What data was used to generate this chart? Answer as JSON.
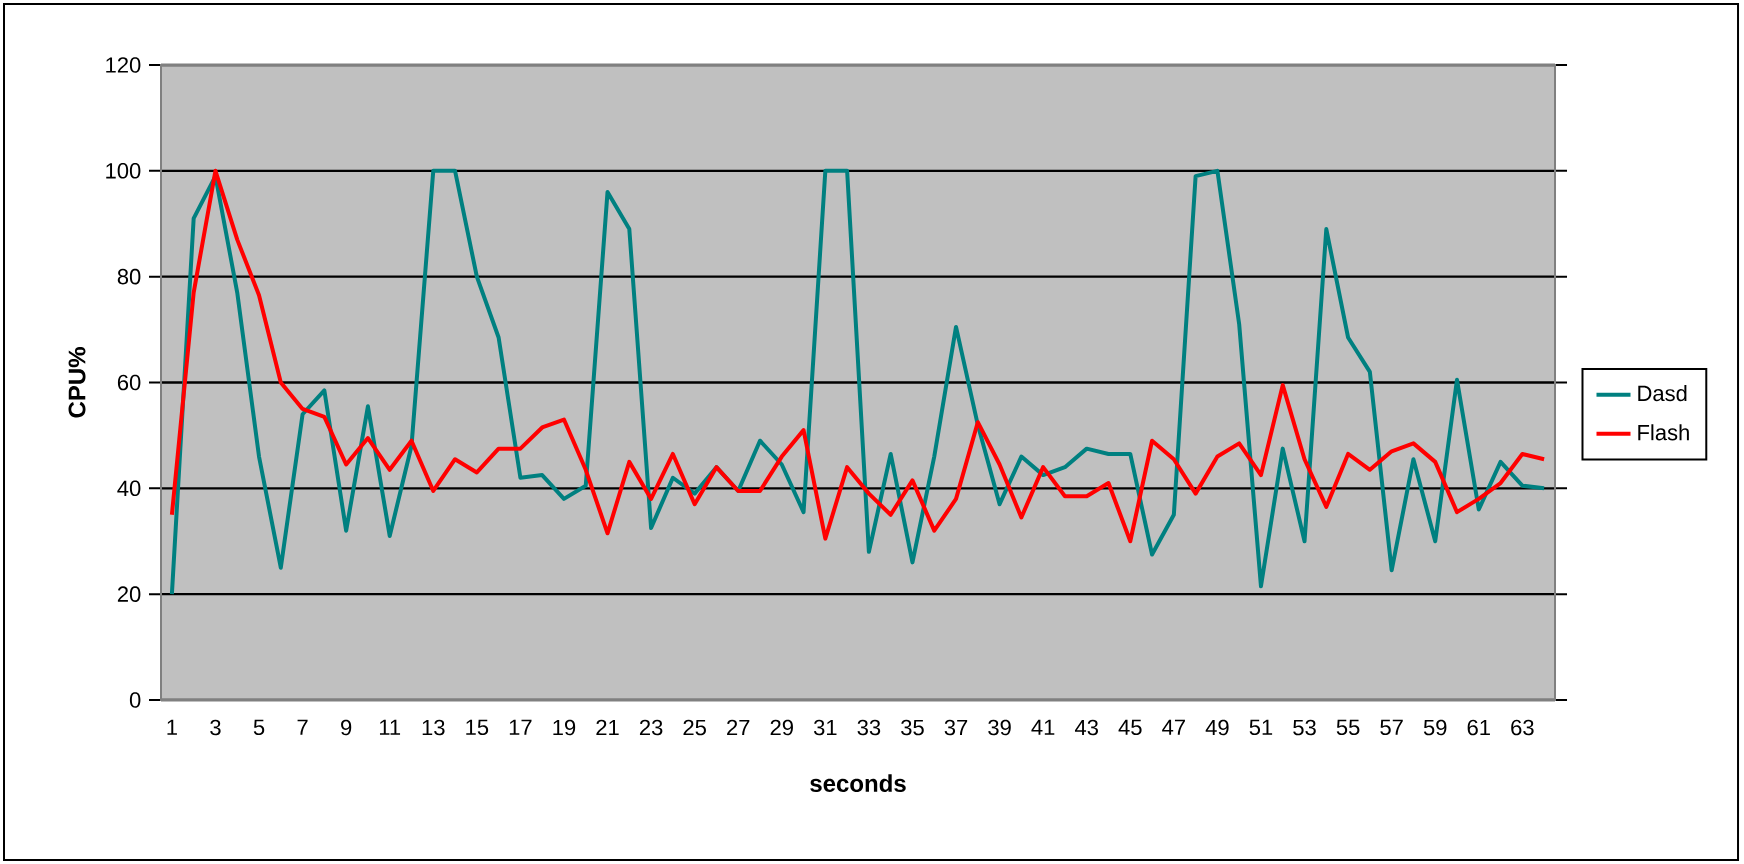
{
  "chart_data": {
    "type": "line",
    "xlabel": "seconds",
    "ylabel": "CPU%",
    "categories": [
      "1",
      null,
      "3",
      null,
      "5",
      null,
      "7",
      null,
      "9",
      null,
      "11",
      null,
      "13",
      null,
      "15",
      null,
      "17",
      null,
      "19",
      null,
      "21",
      null,
      "23",
      null,
      "25",
      null,
      "27",
      null,
      "29",
      null,
      "31",
      null,
      "33",
      null,
      "35",
      null,
      "37",
      null,
      "39",
      null,
      "41",
      null,
      "43",
      null,
      "45",
      null,
      "47",
      null,
      "49",
      null,
      "51",
      null,
      "53",
      null,
      "55",
      null,
      "57",
      null,
      "59",
      null,
      "61",
      null,
      "63",
      null
    ],
    "series": [
      {
        "name": "Dasd",
        "color": "#008080",
        "values": [
          20,
          91,
          99,
          77,
          46,
          25,
          54,
          58.5,
          32,
          55.5,
          31,
          48,
          100,
          100,
          80,
          68.5,
          42,
          42.5,
          38,
          40.5,
          96,
          89,
          32.5,
          42,
          39,
          44,
          39.5,
          49,
          44.5,
          35.5,
          100,
          100,
          28,
          46.5,
          26,
          46,
          70.5,
          52,
          37,
          46,
          42.5,
          44,
          47.5,
          46.5,
          46.5,
          27.5,
          35,
          99,
          100,
          71,
          21.5,
          47.5,
          30,
          89,
          68.5,
          62,
          24.5,
          45.5,
          30,
          60.5,
          36,
          45,
          40.5,
          40
        ]
      },
      {
        "name": "Flash",
        "color": "#ff0000",
        "values": [
          35,
          77,
          100,
          87,
          76.5,
          60,
          55,
          53.5,
          44.5,
          49.5,
          43.5,
          49,
          39.5,
          45.5,
          43,
          47.5,
          47.5,
          51.5,
          53,
          43.5,
          31.5,
          45,
          38,
          46.5,
          37,
          44,
          39.5,
          39.5,
          46,
          51,
          30.5,
          44,
          39,
          35,
          41.5,
          32,
          38,
          52.5,
          44.5,
          34.5,
          44,
          38.5,
          38.5,
          41,
          30,
          49,
          45.5,
          39,
          46,
          48.5,
          42.5,
          59.5,
          45.5,
          36.5,
          46.5,
          43.5,
          47,
          48.5,
          45,
          35.5,
          38,
          41,
          46.5,
          45.5
        ]
      }
    ],
    "ylim": [
      0,
      120
    ],
    "yticks": [
      0,
      20,
      40,
      60,
      80,
      100,
      120
    ],
    "grid": "y",
    "legend": "right"
  }
}
